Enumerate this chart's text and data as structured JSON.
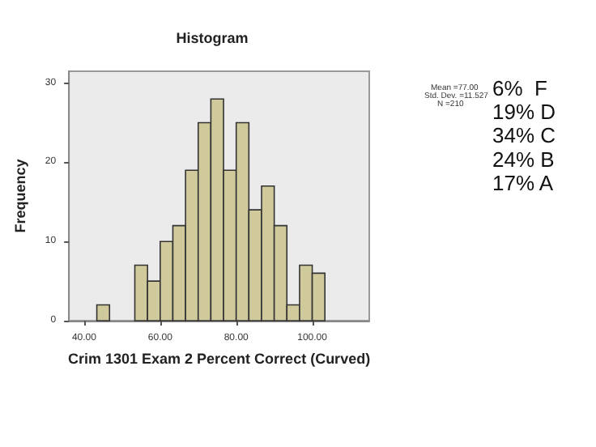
{
  "chart_data": {
    "type": "histogram",
    "title": "Histogram",
    "xlabel": "Crim 1301 Exam 2 Percent Correct (Curved)",
    "ylabel": "Frequency",
    "bins": [
      43.33,
      46.67,
      50,
      53.33,
      56.67,
      60,
      63.33,
      66.67,
      70,
      73.33,
      76.67,
      80,
      83.33,
      86.67,
      90,
      93.33,
      96.67,
      100,
      103.33
    ],
    "values": [
      2,
      0,
      0,
      7,
      5,
      10,
      12,
      19,
      25,
      28,
      19,
      25,
      14,
      17,
      12,
      2,
      7,
      6
    ],
    "color": "#cfc99b",
    "xlim": [
      36,
      115
    ],
    "xticks": [
      {
        "value": 40,
        "label": "40.00"
      },
      {
        "value": 60,
        "label": "60.00"
      },
      {
        "value": 80,
        "label": "80.00"
      },
      {
        "value": 100,
        "label": "100.00"
      }
    ],
    "ylim": [
      0,
      31.5
    ],
    "yticks": [
      0,
      10,
      20,
      30
    ],
    "grid": false,
    "annotations": [
      "Mean =77.00",
      "Std. Dev. =11.527",
      "N =210",
      "6%  F",
      "19% D",
      "34% C",
      "24% B",
      "17% A"
    ]
  }
}
